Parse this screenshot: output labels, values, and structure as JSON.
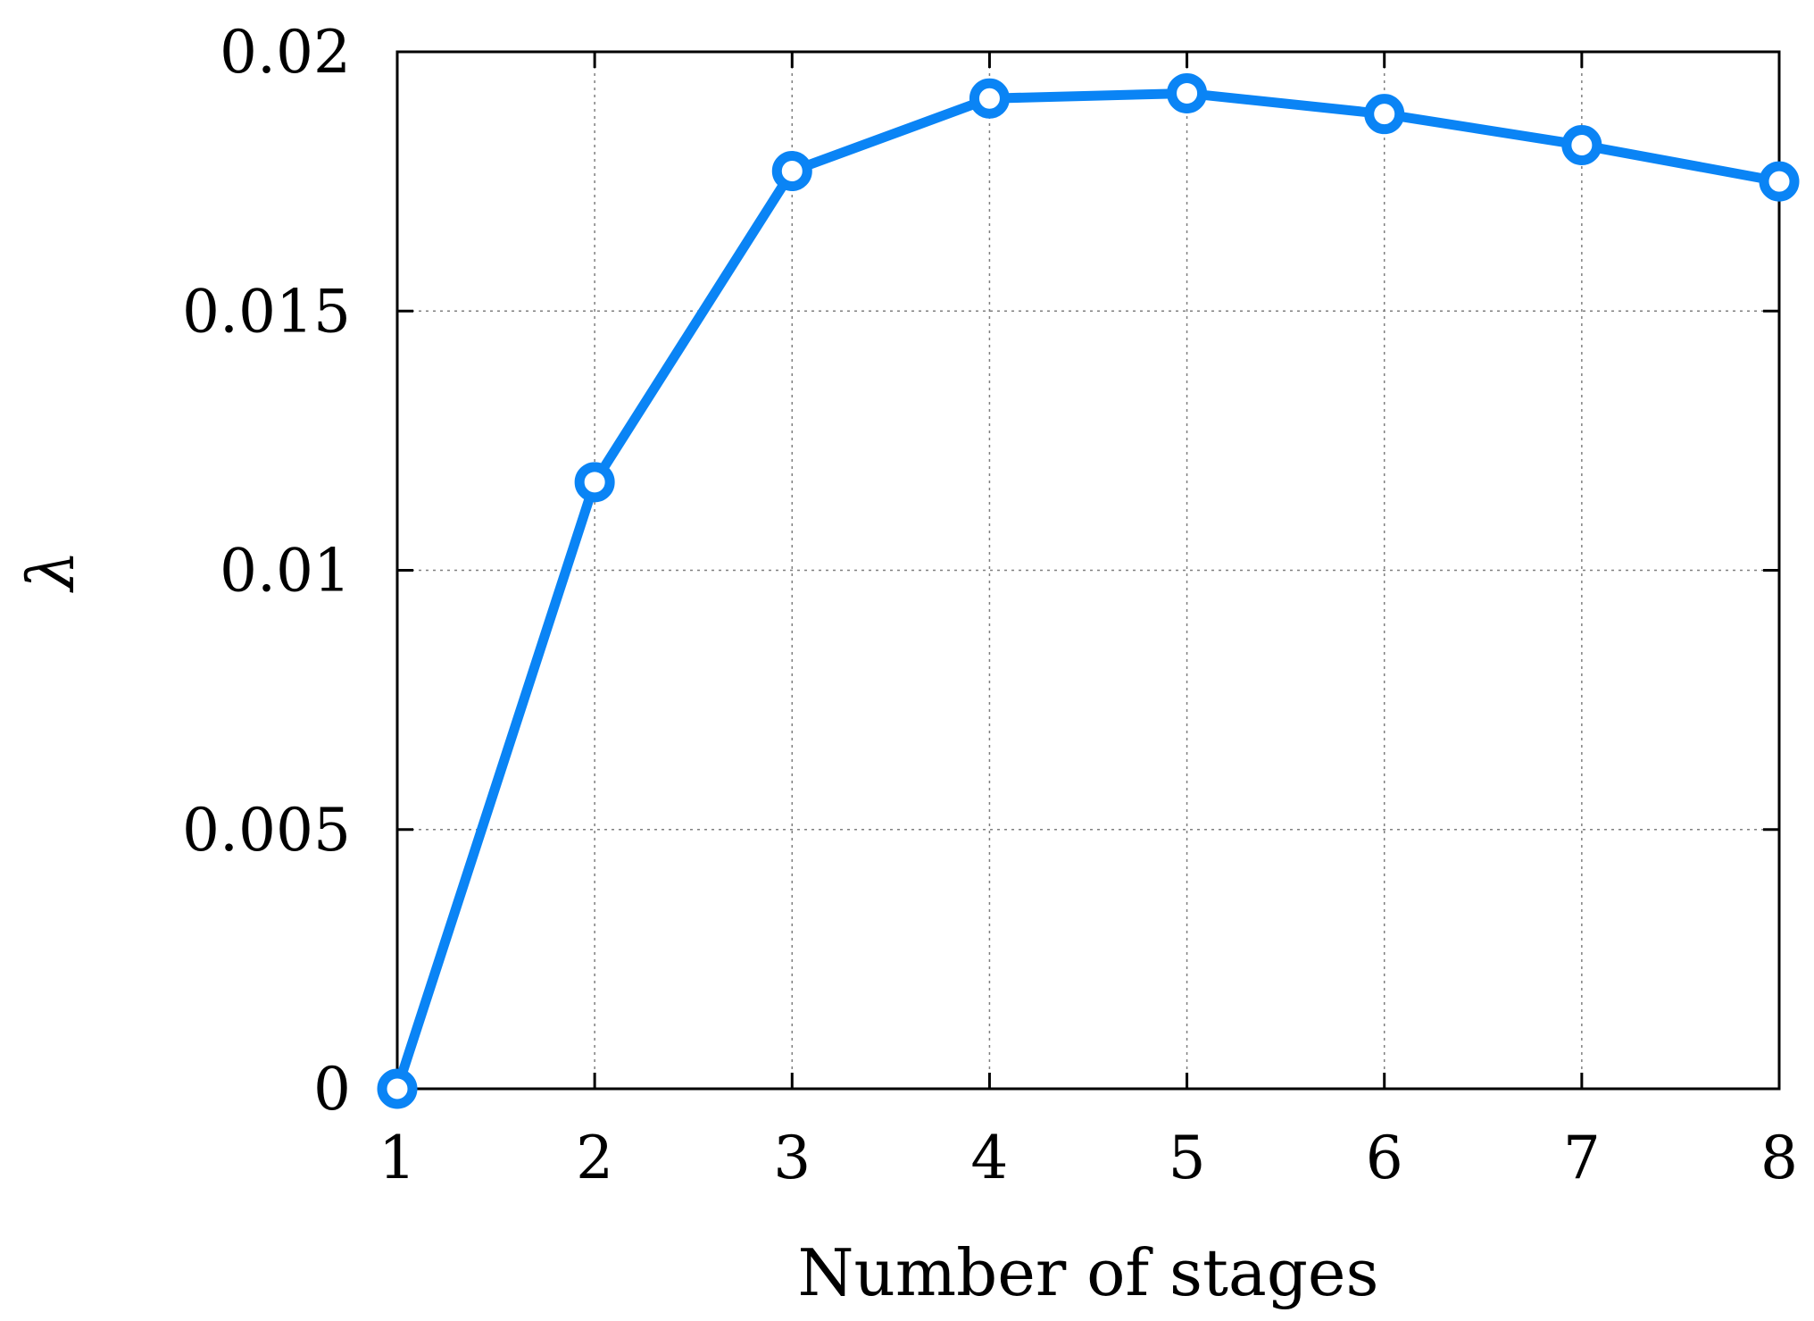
{
  "chart_data": {
    "type": "line",
    "xlabel": "Number of stages",
    "ylabel": "λ",
    "x": [
      1,
      2,
      3,
      4,
      5,
      6,
      7,
      8
    ],
    "xticks": [
      "1",
      "2",
      "3",
      "4",
      "5",
      "6",
      "7",
      "8"
    ],
    "yticks": [
      "0",
      "0.005",
      "0.01",
      "0.015",
      "0.02"
    ],
    "xlim": [
      1,
      8
    ],
    "ylim": [
      0,
      0.02
    ],
    "grid": true,
    "series": [
      {
        "values": [
          0.0,
          0.0117,
          0.0177,
          0.0191,
          0.0192,
          0.0188,
          0.0182,
          0.0175
        ],
        "color": "#0a84f5",
        "marker": "circle"
      }
    ]
  }
}
